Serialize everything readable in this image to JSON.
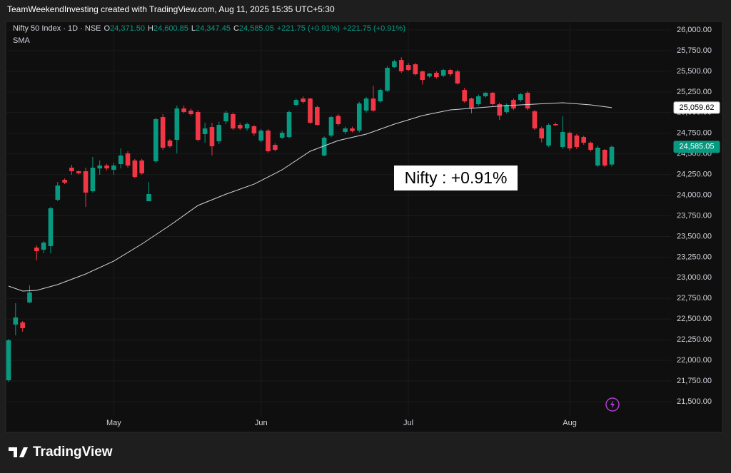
{
  "header": {
    "text": "TeamWeekendInvesting created with TradingView.com, Aug 11, 2025 15:35 UTC+5:30"
  },
  "footer": {
    "brand": "TradingView"
  },
  "chart_data": {
    "type": "candlestick",
    "title": "Nifty 50 Index · 1D · NSE",
    "ohlc_legend": [
      {
        "key": "O",
        "value": "24,371.50"
      },
      {
        "key": "H",
        "value": "24,600.85"
      },
      {
        "key": "L",
        "value": "24,347.45"
      },
      {
        "key": "C",
        "value": "24,585.05"
      },
      {
        "value": "+221.75 (+0.91%)"
      },
      {
        "value": "+221.75 (+0.91%)"
      }
    ],
    "categories": [
      null,
      null,
      null,
      null,
      null,
      null,
      null,
      null,
      null,
      null,
      null,
      null,
      null,
      null,
      null,
      "May",
      null,
      null,
      null,
      null,
      null,
      null,
      null,
      null,
      null,
      null,
      null,
      null,
      null,
      null,
      null,
      null,
      null,
      null,
      null,
      null,
      "Jun",
      null,
      null,
      null,
      null,
      null,
      null,
      null,
      null,
      null,
      null,
      null,
      null,
      null,
      null,
      null,
      null,
      null,
      null,
      null,
      null,
      "Jul",
      null,
      null,
      null,
      null,
      null,
      null,
      null,
      null,
      null,
      null,
      null,
      null,
      null,
      null,
      null,
      null,
      null,
      null,
      null,
      null,
      null,
      null,
      "Aug",
      null,
      null,
      null,
      null,
      null,
      null
    ],
    "open": [
      21759,
      22433,
      22459,
      22701,
      23366,
      23340,
      23383,
      23944,
      24186,
      24333,
      24290,
      24290,
      24048,
      24324,
      24359,
      24307,
      24376,
      24506,
      24420,
      24420,
      23927,
      24411,
      24946,
      24661,
      24670,
      25050,
      25024,
      25007,
      24739,
      24825,
      24653,
      24894,
      24981,
      24851,
      24808,
      24834,
      24661,
      24782,
      24609,
      24696,
      24704,
      25093,
      25170,
      25170,
      25067,
      24480,
      24722,
      24960,
      24765,
      24808,
      24782,
      25024,
      25170,
      25136,
      25265,
      25551,
      25637,
      25577,
      25585,
      25499,
      25438,
      25482,
      25447,
      25516,
      25499,
      25274,
      25170,
      25102,
      25197,
      25240,
      25102,
      25007,
      25153,
      25153,
      25240,
      25015,
      24808,
      24601,
      24860,
      24584,
      24756,
      24722,
      24704,
      24635,
      24359,
      24549,
      24371.5
    ],
    "high": [
      22260,
      22692,
      22476,
      22908,
      23392,
      23443,
      23859,
      24160,
      24203,
      24368,
      24300,
      24333,
      24463,
      24420,
      24380,
      24393,
      24566,
      24532,
      24437,
      24440,
      24160,
      24938,
      24981,
      24678,
      25085,
      25085,
      25050,
      25030,
      24877,
      24877,
      24890,
      25024,
      25000,
      24877,
      24880,
      24850,
      24800,
      24800,
      24630,
      24780,
      25024,
      25170,
      25195,
      25180,
      25085,
      24710,
      24960,
      24980,
      24830,
      24830,
      25130,
      25190,
      25326,
      25290,
      25560,
      25640,
      25670,
      25600,
      25600,
      25510,
      25480,
      25500,
      25530,
      25530,
      25520,
      25300,
      25180,
      25220,
      25250,
      25250,
      25120,
      25110,
      25170,
      25240,
      25260,
      25030,
      24830,
      24870,
      24880,
      24955,
      24770,
      24740,
      24720,
      24650,
      24600,
      24560,
      24600.85
    ],
    "low": [
      21740,
      22303,
      22347,
      22692,
      23210,
      23297,
      23297,
      23927,
      24134,
      24247,
      24250,
      23858,
      24031,
      24247,
      24300,
      24247,
      24324,
      24333,
      24203,
      24247,
      23927,
      24394,
      24549,
      24575,
      24506,
      24990,
      24960,
      24650,
      24635,
      24480,
      24620,
      24860,
      24790,
      24790,
      24780,
      24720,
      24640,
      24515,
      24530,
      24680,
      24690,
      25080,
      25110,
      24860,
      24840,
      24470,
      24700,
      24840,
      24740,
      24760,
      24760,
      25000,
      25010,
      25120,
      25250,
      25540,
      25480,
      25500,
      25450,
      25340,
      25420,
      25410,
      25430,
      25440,
      25340,
      25120,
      24990,
      25080,
      25180,
      25090,
      24910,
      24990,
      25030,
      25130,
      25030,
      24790,
      24640,
      24580,
      24840,
      24560,
      24540,
      24560,
      24610,
      24530,
      24340,
      24340,
      24347.45
    ],
    "close": [
      22243,
      22519,
      22390,
      22822,
      23322,
      23426,
      23841,
      24117,
      24152,
      24290,
      24264,
      24031,
      24333,
      24359,
      24324,
      24359,
      24480,
      24359,
      24221,
      24264,
      24014,
      24920,
      24575,
      24592,
      25050,
      25007,
      24981,
      24670,
      24808,
      24592,
      24851,
      24998,
      24808,
      24808,
      24860,
      24748,
      24782,
      24532,
      24549,
      24756,
      25007,
      25153,
      25128,
      24877,
      24851,
      24696,
      24946,
      24860,
      24808,
      24775,
      25110,
      25170,
      25024,
      25274,
      25542,
      25620,
      25500,
      25516,
      25464,
      25395,
      25473,
      25430,
      25516,
      25464,
      25352,
      25136,
      25050,
      25197,
      25240,
      25102,
      24964,
      25093,
      25050,
      25222,
      25050,
      24808,
      24687,
      24851,
      24845,
      24765,
      24566,
      24584,
      24635,
      24549,
      24575,
      24359,
      24585.05
    ],
    "up_color": "#089981",
    "down_color": "#f23645",
    "last_label": "24,585.05",
    "overlay": {
      "name": "SMA",
      "type": "line",
      "color": "#d1d4dc",
      "x": [
        0,
        2,
        4,
        7,
        11,
        15,
        19,
        23,
        27,
        31,
        35,
        39,
        43,
        47,
        51,
        55,
        59,
        63,
        67,
        71,
        75,
        79,
        83,
        86
      ],
      "values": [
        22899,
        22839,
        22847,
        22917,
        23046,
        23202,
        23409,
        23634,
        23875,
        24013,
        24134,
        24307,
        24532,
        24661,
        24739,
        24860,
        24964,
        25033,
        25059,
        25085,
        25102,
        25119,
        25093,
        25059.62
      ],
      "last_label": "25,059.62"
    },
    "annotation": "Nifty : +0.91%",
    "ylim": [
      21327,
      26104
    ],
    "yticks": [
      {
        "value": 21500,
        "label": "21,500.00"
      },
      {
        "value": 21750,
        "label": "21,750.00"
      },
      {
        "value": 22000,
        "label": "22,000.00"
      },
      {
        "value": 22250,
        "label": "22,250.00"
      },
      {
        "value": 22500,
        "label": "22,500.00"
      },
      {
        "value": 22750,
        "label": "22,750.00"
      },
      {
        "value": 23000,
        "label": "23,000.00"
      },
      {
        "value": 23250,
        "label": "23,250.00"
      },
      {
        "value": 23500,
        "label": "23,500.00"
      },
      {
        "value": 23750,
        "label": "23,750.00"
      },
      {
        "value": 24000,
        "label": "24,000.00"
      },
      {
        "value": 24250,
        "label": "24,250.00"
      },
      {
        "value": 24500,
        "label": "24,500.00"
      },
      {
        "value": 24750,
        "label": "24,750.00"
      },
      {
        "value": 25000,
        "label": "25,000.00"
      },
      {
        "value": 25250,
        "label": "25,250.00"
      },
      {
        "value": 25500,
        "label": "25,500.00"
      },
      {
        "value": 25750,
        "label": "25,750.00"
      },
      {
        "value": 26000,
        "label": "26,000.00"
      }
    ],
    "grid": true
  }
}
